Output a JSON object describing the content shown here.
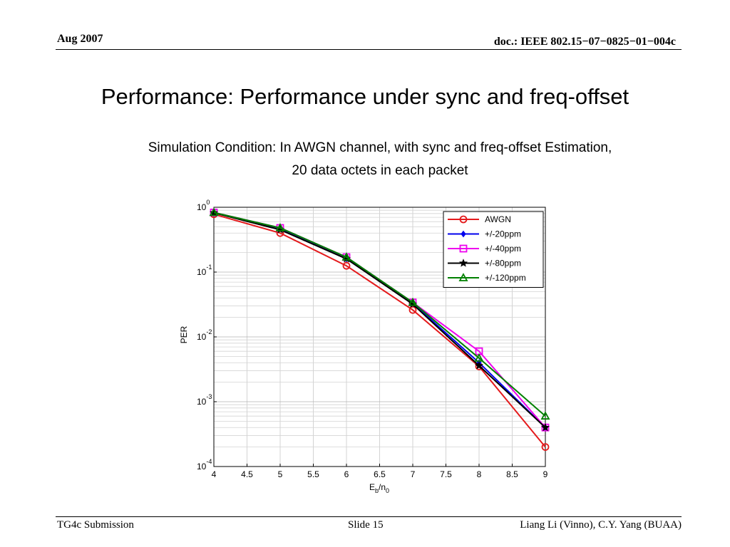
{
  "header": {
    "left": "Aug 2007",
    "right": "doc.: IEEE 802.15−07−0825−01−004c"
  },
  "slide": {
    "title": "Performance: Performance under sync and freq-offset",
    "subtitle_line1": "Simulation Condition: In AWGN channel, with sync and freq-offset Estimation,",
    "subtitle_line2": "20 data octets in each packet"
  },
  "footer": {
    "left": "TG4c Submission",
    "center": "Slide 15",
    "right": "Liang Li (Vinno), C.Y. Yang (BUAA)"
  },
  "chart_data": {
    "type": "line",
    "xlabel_main": "E",
    "xlabel_sub1": "b",
    "xlabel_mid": "/n",
    "xlabel_sub2": "0",
    "ylabel": "PER",
    "xlim": [
      4,
      9
    ],
    "ylim": [
      0.0001,
      1
    ],
    "yscale": "log",
    "grid": true,
    "legend_position": "top-right",
    "x_ticks": [
      "4",
      "4.5",
      "5",
      "5.5",
      "6",
      "6.5",
      "7",
      "7.5",
      "8",
      "8.5",
      "9"
    ],
    "y_ticks": [
      {
        "base": "10",
        "exp": "0",
        "value": 1
      },
      {
        "base": "10",
        "exp": "-1",
        "value": 0.1
      },
      {
        "base": "10",
        "exp": "-2",
        "value": 0.01
      },
      {
        "base": "10",
        "exp": "-3",
        "value": 0.001
      },
      {
        "base": "10",
        "exp": "-4",
        "value": 0.0001
      }
    ],
    "x": [
      4,
      5,
      6,
      7,
      8,
      9
    ],
    "series": [
      {
        "name": "AWGN",
        "color": "#e41a1c",
        "marker": "circle",
        "values": [
          0.78,
          0.4,
          0.125,
          0.026,
          0.0035,
          0.0002
        ]
      },
      {
        "name": "+/-20ppm",
        "color": "#0000ee",
        "marker": "diamond",
        "values": [
          0.82,
          0.47,
          0.16,
          0.033,
          0.004,
          0.0004
        ]
      },
      {
        "name": "+/-40ppm",
        "color": "#ee00ee",
        "marker": "square",
        "values": [
          0.83,
          0.48,
          0.17,
          0.034,
          0.006,
          0.0004
        ]
      },
      {
        "name": "+/-80ppm",
        "color": "#000000",
        "marker": "star",
        "values": [
          0.82,
          0.45,
          0.16,
          0.032,
          0.0036,
          0.0004
        ]
      },
      {
        "name": "+/-120ppm",
        "color": "#008000",
        "marker": "triangle",
        "values": [
          0.83,
          0.48,
          0.17,
          0.034,
          0.0047,
          0.0006
        ]
      }
    ]
  }
}
